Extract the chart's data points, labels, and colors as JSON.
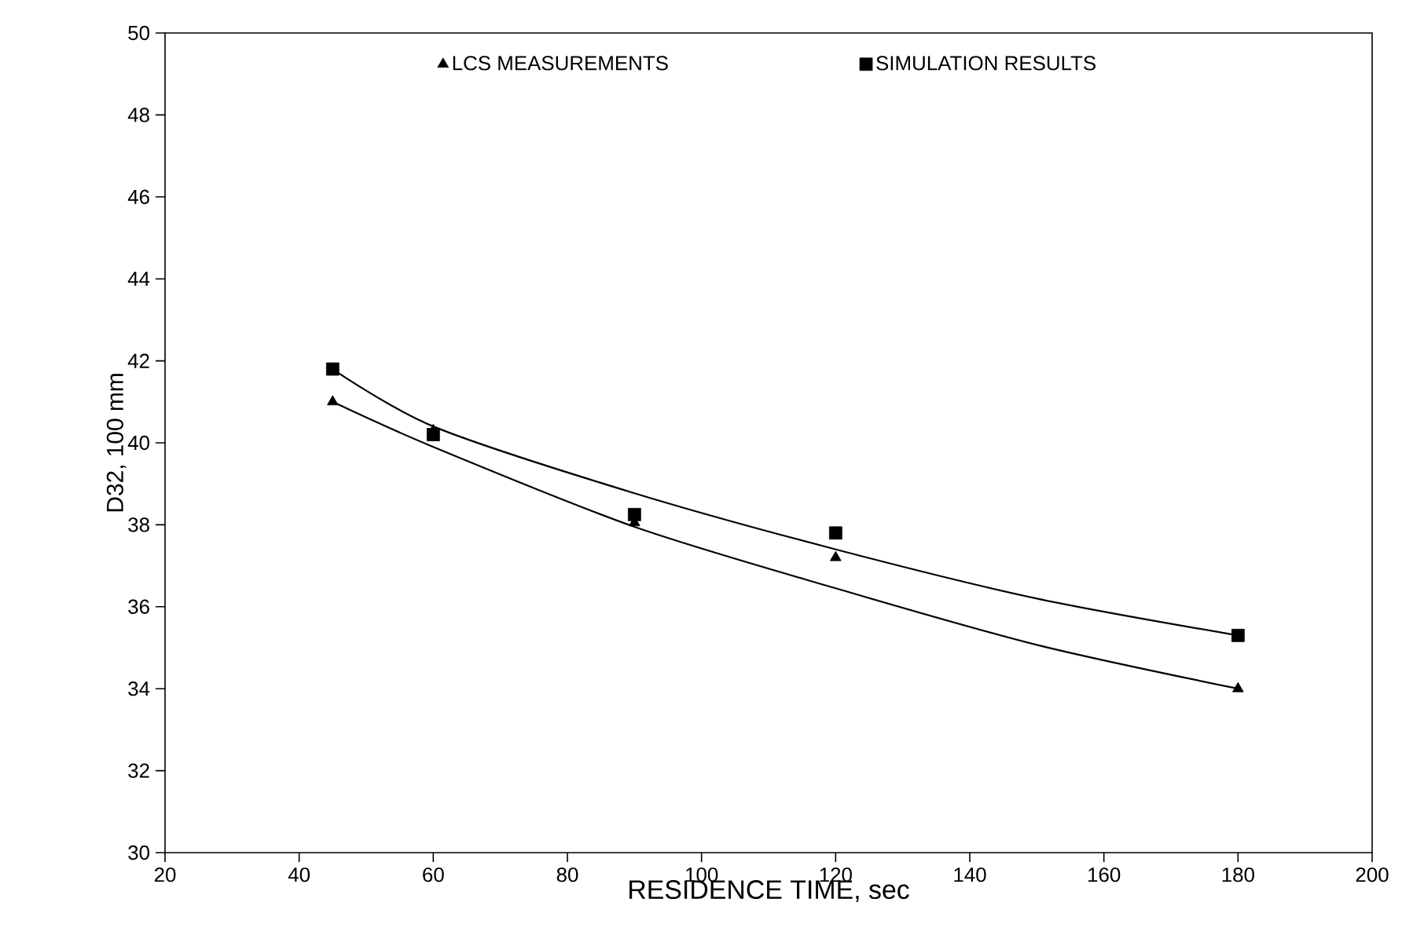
{
  "chart_data": {
    "type": "scatter",
    "xlabel": "RESIDENCE TIME,  sec",
    "ylabel": "D32,  100 mm",
    "xlim": [
      20,
      200
    ],
    "xticks": [
      20,
      40,
      60,
      80,
      100,
      120,
      140,
      160,
      180,
      200
    ],
    "ylim": [
      30,
      50
    ],
    "yticks": [
      30,
      32,
      34,
      36,
      38,
      40,
      42,
      44,
      46,
      48,
      50
    ],
    "grid": false,
    "legend": "top",
    "series": [
      {
        "name": "LCS MEASUREMENTS",
        "color": "#000000",
        "marker": "triangle",
        "x": [
          45,
          60,
          90,
          120,
          180
        ],
        "values": [
          41.0,
          40.3,
          38.05,
          37.2,
          34.0
        ]
      },
      {
        "name": "SIMULATION RESULTS",
        "color": "#000000",
        "marker": "square",
        "x": [
          45,
          60,
          90,
          120,
          180
        ],
        "values": [
          41.8,
          40.2,
          38.25,
          37.8,
          35.3
        ]
      },
      {
        "type": "line",
        "color": "#000000",
        "x": [
          45,
          60,
          90,
          120,
          150,
          180
        ],
        "values": [
          41.0,
          39.9,
          37.95,
          36.45,
          35.07,
          34.0
        ]
      },
      {
        "type": "line",
        "color": "#000000",
        "x": [
          45,
          60,
          90,
          120,
          150,
          180
        ],
        "values": [
          41.8,
          40.4,
          38.77,
          37.4,
          36.2,
          35.3
        ]
      }
    ]
  }
}
